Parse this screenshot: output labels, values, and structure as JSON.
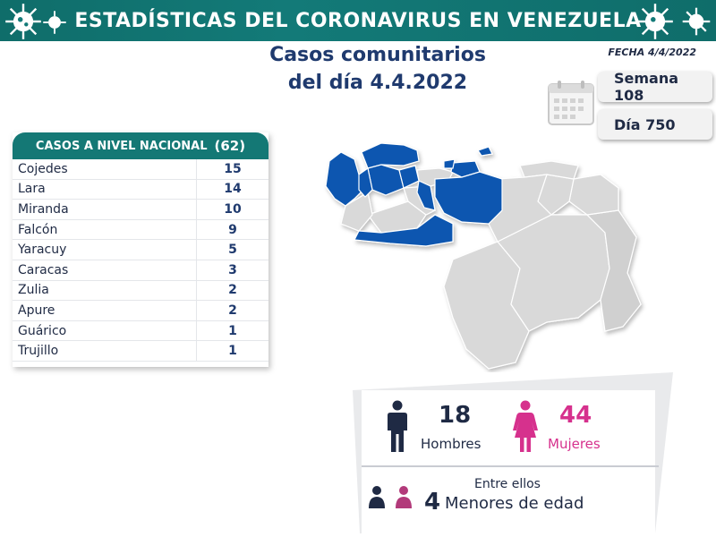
{
  "header": {
    "title": "ESTADÍSTICAS DEL CORONAVIRUS EN VENEZUELA",
    "decoration_icon": "virus-icon"
  },
  "report": {
    "title_line1": "Casos comunitarios",
    "title_line2": "del día 4.4.2022",
    "fecha": "FECHA 4/4/2022",
    "semana": "Semana 108",
    "dia": "Día 750",
    "calendar_icon": "calendar-icon"
  },
  "national_table": {
    "header_label": "CASOS A NIVEL NACIONAL",
    "total": "(62)",
    "rows": [
      {
        "state": "Cojedes",
        "count": "15"
      },
      {
        "state": "Lara",
        "count": "14"
      },
      {
        "state": "Miranda",
        "count": "10"
      },
      {
        "state": "Falcón",
        "count": "9"
      },
      {
        "state": "Yaracuy",
        "count": "5"
      },
      {
        "state": "Caracas",
        "count": "3"
      },
      {
        "state": "Zulia",
        "count": "2"
      },
      {
        "state": "Apure",
        "count": "2"
      },
      {
        "state": "Guárico",
        "count": "1"
      },
      {
        "state": "Trujillo",
        "count": "1"
      }
    ]
  },
  "map": {
    "highlight_color": "#0b57b0",
    "base_color": "#d7d7d7",
    "highlighted_states": [
      "Zulia",
      "Falcón",
      "Lara",
      "Yaracuy",
      "Cojedes",
      "Trujillo",
      "Apure",
      "Guárico",
      "Miranda",
      "Caracas"
    ]
  },
  "demographics": {
    "men_count": "18",
    "men_label": "Hombres",
    "women_count": "44",
    "women_label": "Mujeres",
    "entre_ellos": "Entre ellos",
    "minors_count": "4",
    "minors_label": "Menores de edad",
    "men_color": "#1f2a44",
    "women_color": "#d6318d"
  }
}
